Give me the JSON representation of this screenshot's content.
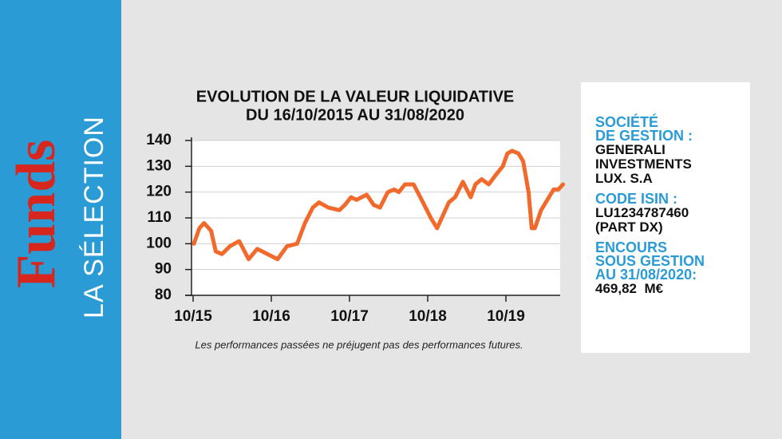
{
  "sidebar": {
    "brand": "Funds",
    "subtitle": "LA SÉLECTION"
  },
  "chart_data": {
    "type": "line",
    "title": [
      "EVOLUTION DE LA VALEUR LIQUIDATIVE",
      "DU 16/10/2015 AU 31/08/2020"
    ],
    "note": "Les performances passées ne préjugent pas des performances futures.",
    "x": [
      2015.76,
      2015.83,
      2015.89,
      2015.98,
      2016.04,
      2016.12,
      2016.22,
      2016.34,
      2016.46,
      2016.57,
      2016.7,
      2016.83,
      2016.95,
      2017.08,
      2017.18,
      2017.28,
      2017.36,
      2017.48,
      2017.62,
      2017.69,
      2017.77,
      2017.84,
      2017.97,
      2018.06,
      2018.14,
      2018.24,
      2018.32,
      2018.38,
      2018.46,
      2018.57,
      2018.69,
      2018.79,
      2018.87,
      2019.02,
      2019.1,
      2019.2,
      2019.3,
      2019.36,
      2019.44,
      2019.53,
      2019.63,
      2019.71,
      2019.77,
      2019.83,
      2019.91,
      2019.97,
      2020.04,
      2020.08,
      2020.12,
      2020.2,
      2020.3,
      2020.36,
      2020.42,
      2020.48
    ],
    "series": [
      {
        "color": "#f26a2b",
        "values": [
          100,
          106,
          108,
          105,
          97,
          96,
          99,
          101,
          94,
          98,
          96,
          94,
          99,
          100,
          108,
          114,
          116,
          114,
          113,
          115,
          118,
          117,
          119,
          115,
          114,
          120,
          121,
          120,
          123,
          123,
          116,
          110,
          106,
          116,
          118,
          124,
          118,
          123,
          125,
          123,
          127,
          130,
          135,
          136,
          135,
          132,
          120,
          106,
          106,
          113,
          118,
          121,
          121,
          123
        ]
      }
    ],
    "xlim": [
      2015.75,
      2020.5
    ],
    "xticks": [
      {
        "value": 2015.75,
        "label": "10/15"
      },
      {
        "value": 2016.75,
        "label": "10/16"
      },
      {
        "value": 2017.75,
        "label": "10/17"
      },
      {
        "value": 2018.75,
        "label": "10/18"
      },
      {
        "value": 2019.75,
        "label": "10/19"
      }
    ],
    "ylim": [
      80,
      140
    ],
    "yticks": [
      80,
      90,
      100,
      110,
      120,
      130,
      140
    ],
    "grid": true
  },
  "info": [
    {
      "label": [
        "SOCIÉTÉ",
        "DE GESTION :"
      ],
      "value": [
        "GENERALI",
        "INVESTMENTS",
        "LUX. S.A"
      ]
    },
    {
      "label": [
        "CODE ISIN :"
      ],
      "value": [
        "LU1234787460",
        "(PART DX)"
      ]
    },
    {
      "label": [
        "ENCOURS",
        "SOUS GESTION",
        "AU 31/08/2020:"
      ],
      "value": [
        "469,82  M€"
      ]
    }
  ]
}
